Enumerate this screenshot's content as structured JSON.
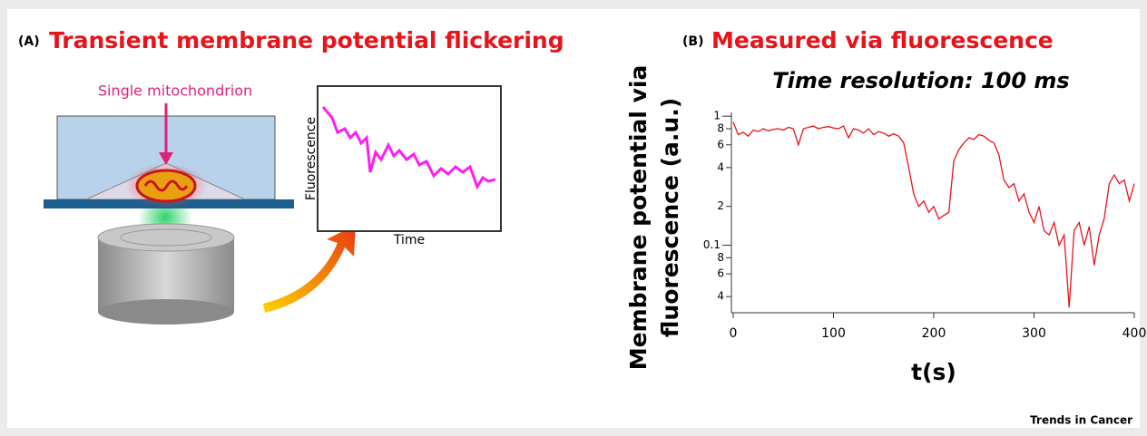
{
  "panel_a": {
    "label": "(A)",
    "title": "Transient membrane potential flickering",
    "annotation": "Single mitochondrion",
    "inset_ylabel": "Fluorescence",
    "inset_xlabel": "Time"
  },
  "chart_data": {
    "type": "line",
    "label": "(B)",
    "title": "Measured via fluorescence",
    "subtitle": "Time resolution: 100 ms",
    "ylabel": [
      "Membrane potential via",
      "fluorescence (a.u.)"
    ],
    "xlabel": "t(s)",
    "yscale": "log",
    "color": "#e8141b",
    "grid": false,
    "xlim": [
      0,
      400
    ],
    "xticks": [
      0,
      100,
      200,
      300,
      400
    ],
    "ylim": [
      0.03,
      1.07
    ],
    "yticks": [
      1,
      {
        "value": 0.8,
        "label": "8"
      },
      {
        "value": 0.6,
        "label": "6"
      },
      {
        "value": 0.4,
        "label": "4"
      },
      {
        "value": 0.2,
        "label": "2"
      },
      0.1,
      {
        "value": 0.08,
        "label": "8"
      },
      {
        "value": 0.06,
        "label": "6"
      },
      {
        "value": 0.04,
        "label": "4"
      }
    ],
    "x": [
      0,
      5,
      10,
      15,
      20,
      25,
      30,
      35,
      40,
      45,
      50,
      55,
      60,
      65,
      70,
      75,
      80,
      85,
      90,
      95,
      100,
      105,
      110,
      115,
      120,
      125,
      130,
      135,
      140,
      145,
      150,
      155,
      160,
      165,
      170,
      175,
      180,
      185,
      190,
      195,
      200,
      205,
      210,
      215,
      220,
      225,
      230,
      235,
      240,
      245,
      250,
      255,
      260,
      265,
      270,
      275,
      280,
      285,
      290,
      295,
      300,
      305,
      310,
      315,
      320,
      325,
      330,
      335,
      340,
      345,
      350,
      355,
      360,
      365,
      370,
      375,
      380,
      385,
      390,
      395,
      400
    ],
    "values": [
      0.9,
      0.72,
      0.75,
      0.7,
      0.78,
      0.76,
      0.8,
      0.77,
      0.79,
      0.8,
      0.78,
      0.82,
      0.8,
      0.6,
      0.8,
      0.82,
      0.84,
      0.8,
      0.82,
      0.83,
      0.81,
      0.8,
      0.84,
      0.68,
      0.8,
      0.78,
      0.74,
      0.8,
      0.72,
      0.76,
      0.74,
      0.7,
      0.73,
      0.7,
      0.62,
      0.4,
      0.25,
      0.2,
      0.22,
      0.18,
      0.2,
      0.16,
      0.17,
      0.18,
      0.45,
      0.55,
      0.62,
      0.68,
      0.66,
      0.72,
      0.7,
      0.65,
      0.62,
      0.5,
      0.32,
      0.28,
      0.3,
      0.22,
      0.25,
      0.18,
      0.15,
      0.2,
      0.13,
      0.12,
      0.15,
      0.1,
      0.12,
      0.033,
      0.13,
      0.15,
      0.1,
      0.14,
      0.07,
      0.12,
      0.16,
      0.3,
      0.35,
      0.3,
      0.32,
      0.22,
      0.3
    ]
  },
  "footer": "Trends in Cancer"
}
